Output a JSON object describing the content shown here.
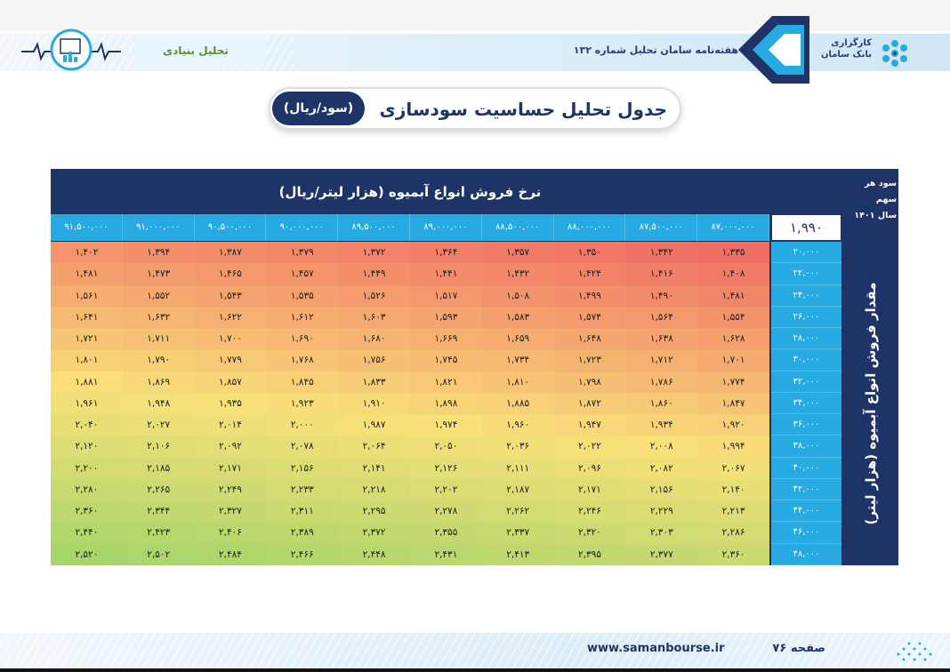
{
  "header": {
    "category": "تحلیل بنیادی",
    "issue": "هفته‌نامه سامان تحلیل شماره ۱۳۲",
    "logo_line1": "کارگزاری",
    "logo_line2": "بانک سامان"
  },
  "title": {
    "text": "جدول تحلیل حساسیت سودسازی",
    "unit": "(سود/ریال)"
  },
  "table": {
    "price_axis_title": "نرخ فروش انواع آبمیوه (هزار لیتر/ریال)",
    "eps_caption_line1": "سود هر سهم",
    "eps_caption_line2": "سال ۱۴۰۱",
    "eps_value": "۱,۹۹۰",
    "volume_axis_title": "مقدار فروش انواع آبمیوه (هزار لیتر)",
    "prices": [
      "۸۷,۰۰۰,۰۰۰",
      "۸۷,۵۰۰,۰۰۰",
      "۸۸,۰۰۰,۰۰۰",
      "۸۸,۵۰۰,۰۰۰",
      "۸۹,۰۰۰,۰۰۰",
      "۸۹,۵۰۰,۰۰۰",
      "۹۰,۰۰۰,۰۰۰",
      "۹۰,۵۰۰,۰۰۰",
      "۹۱,۰۰۰,۰۰۰",
      "۹۱,۵۰۰,۰۰۰"
    ],
    "rows": [
      {
        "volume": "۲۰,۰۰۰",
        "values": [
          "۱,۳۳۵",
          "۱,۳۴۲",
          "۱,۳۵۰",
          "۱,۳۵۷",
          "۱,۳۶۴",
          "۱,۳۷۲",
          "۱,۳۷۹",
          "۱,۳۸۷",
          "۱,۳۹۴",
          "۱,۴۰۲"
        ]
      },
      {
        "volume": "۲۲,۰۰۰",
        "values": [
          "۱,۴۰۸",
          "۱,۴۱۶",
          "۱,۴۲۴",
          "۱,۴۳۲",
          "۱,۴۴۱",
          "۱,۴۴۹",
          "۱,۴۵۷",
          "۱,۴۶۵",
          "۱,۴۷۳",
          "۱,۴۸۱"
        ]
      },
      {
        "volume": "۲۴,۰۰۰",
        "values": [
          "۱,۴۸۱",
          "۱,۴۹۰",
          "۱,۴۹۹",
          "۱,۵۰۸",
          "۱,۵۱۷",
          "۱,۵۲۶",
          "۱,۵۳۵",
          "۱,۵۴۳",
          "۱,۵۵۲",
          "۱,۵۶۱"
        ]
      },
      {
        "volume": "۲۶,۰۰۰",
        "values": [
          "۱,۵۵۴",
          "۱,۵۶۴",
          "۱,۵۷۴",
          "۱,۵۸۳",
          "۱,۵۹۳",
          "۱,۶۰۳",
          "۱,۶۱۲",
          "۱,۶۲۲",
          "۱,۶۳۲",
          "۱,۶۴۱"
        ]
      },
      {
        "volume": "۲۸,۰۰۰",
        "values": [
          "۱,۶۲۸",
          "۱,۶۳۸",
          "۱,۶۴۸",
          "۱,۶۵۹",
          "۱,۶۶۹",
          "۱,۶۸۰",
          "۱,۶۹۰",
          "۱,۷۰۰",
          "۱,۷۱۱",
          "۱,۷۲۱"
        ]
      },
      {
        "volume": "۳۰,۰۰۰",
        "values": [
          "۱,۷۰۱",
          "۱,۷۱۲",
          "۱,۷۲۳",
          "۱,۷۳۴",
          "۱,۷۴۵",
          "۱,۷۵۶",
          "۱,۷۶۸",
          "۱,۷۷۹",
          "۱,۷۹۰",
          "۱,۸۰۱"
        ]
      },
      {
        "volume": "۳۲,۰۰۰",
        "values": [
          "۱,۷۷۴",
          "۱,۷۸۶",
          "۱,۷۹۸",
          "۱,۸۱۰",
          "۱,۸۲۱",
          "۱,۸۳۳",
          "۱,۸۴۵",
          "۱,۸۵۷",
          "۱,۸۶۹",
          "۱,۸۸۱"
        ]
      },
      {
        "volume": "۳۴,۰۰۰",
        "values": [
          "۱,۸۴۷",
          "۱,۸۶۰",
          "۱,۸۷۲",
          "۱,۸۸۵",
          "۱,۸۹۸",
          "۱,۹۱۰",
          "۱,۹۲۳",
          "۱,۹۳۵",
          "۱,۹۴۸",
          "۱,۹۶۱"
        ]
      },
      {
        "volume": "۳۶,۰۰۰",
        "values": [
          "۱,۹۲۰",
          "۱,۹۳۴",
          "۱,۹۴۷",
          "۱,۹۶۰",
          "۱,۹۷۴",
          "۱,۹۸۷",
          "۲,۰۰۰",
          "۲,۰۱۴",
          "۲,۰۲۷",
          "۲,۰۴۰"
        ]
      },
      {
        "volume": "۳۸,۰۰۰",
        "values": [
          "۱,۹۹۴",
          "۲,۰۰۸",
          "۲,۰۲۲",
          "۲,۰۳۶",
          "۲,۰۵۰",
          "۲,۰۶۴",
          "۲,۰۷۸",
          "۲,۰۹۲",
          "۲,۱۰۶",
          "۲,۱۲۰"
        ]
      },
      {
        "volume": "۴۰,۰۰۰",
        "values": [
          "۲,۰۶۷",
          "۲,۰۸۲",
          "۲,۰۹۶",
          "۲,۱۱۱",
          "۲,۱۲۶",
          "۲,۱۴۱",
          "۲,۱۵۶",
          "۲,۱۷۱",
          "۲,۱۸۵",
          "۲,۲۰۰"
        ]
      },
      {
        "volume": "۴۲,۰۰۰",
        "values": [
          "۲,۱۴۰",
          "۲,۱۵۶",
          "۲,۱۷۱",
          "۲,۱۸۷",
          "۲,۲۰۲",
          "۲,۲۱۸",
          "۲,۲۳۳",
          "۲,۲۴۹",
          "۲,۲۶۵",
          "۲,۲۸۰"
        ]
      },
      {
        "volume": "۴۴,۰۰۰",
        "values": [
          "۲,۲۱۳",
          "۲,۲۲۹",
          "۲,۲۴۶",
          "۲,۲۶۲",
          "۲,۲۷۸",
          "۲,۲۹۵",
          "۲,۳۱۱",
          "۲,۳۲۷",
          "۲,۳۴۴",
          "۲,۳۶۰"
        ]
      },
      {
        "volume": "۴۶,۰۰۰",
        "values": [
          "۲,۲۸۶",
          "۲,۳۰۳",
          "۲,۳۲۰",
          "۲,۳۳۷",
          "۲,۳۵۵",
          "۲,۳۷۲",
          "۲,۳۸۹",
          "۲,۴۰۶",
          "۲,۴۲۳",
          "۲,۴۴۰"
        ]
      },
      {
        "volume": "۴۸,۰۰۰",
        "values": [
          "۲,۳۶۰",
          "۲,۳۷۷",
          "۲,۳۹۵",
          "۲,۴۱۳",
          "۲,۴۳۱",
          "۲,۴۴۸",
          "۲,۴۶۶",
          "۲,۴۸۴",
          "۲,۵۰۲",
          "۲,۵۲۰"
        ]
      }
    ]
  },
  "footer": {
    "url": "www.samanbourse.ir",
    "page_label": "صفحه ۷۶"
  },
  "colors": {
    "navy": "#1e3467",
    "cyan": "#27aae1",
    "heat_low": "#f07267",
    "heat_mid": "#f9e07a",
    "heat_high": "#a8d56a"
  }
}
